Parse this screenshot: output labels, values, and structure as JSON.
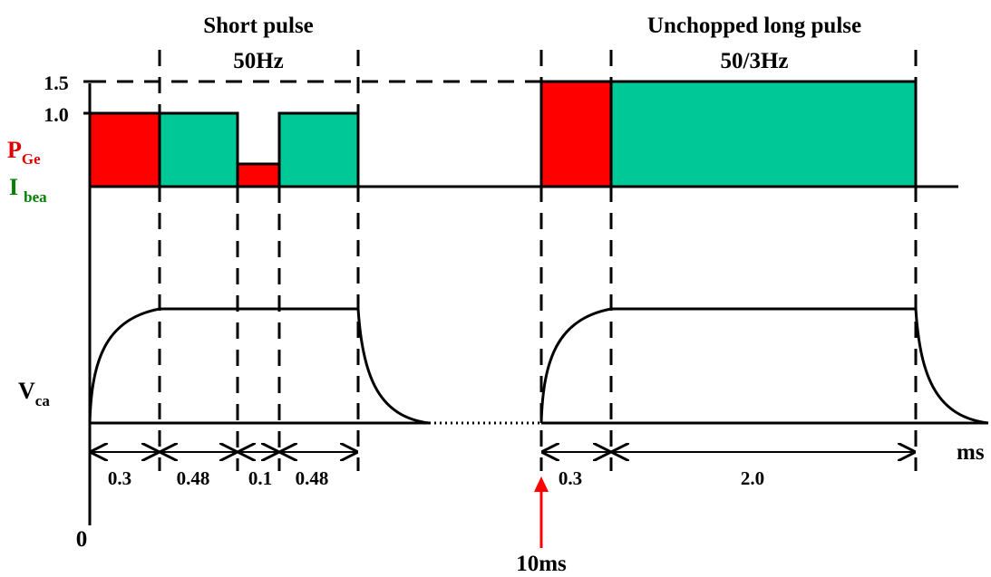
{
  "headers": {
    "short_pulse": "Short pulse",
    "short_freq": "50Hz",
    "long_pulse": "Unchopped long pulse",
    "long_freq": "50/3Hz"
  },
  "y_axis": {
    "tick_1_5": "1.5",
    "tick_1_0": "1.0",
    "p_main": "P",
    "p_sub": "Ge",
    "i_main": "I",
    "i_sub": "bea",
    "v_main": "V",
    "v_sub": "ca",
    "origin": "0"
  },
  "time": {
    "unit": "ms",
    "marker": "10ms",
    "durations": [
      "0.3",
      "0.48",
      "0.1",
      "0.48",
      "0.3",
      "2.0"
    ]
  },
  "colors": {
    "p_ge": "#ff0000",
    "i_beam": "#00c896",
    "marker": "#ff0000"
  }
}
